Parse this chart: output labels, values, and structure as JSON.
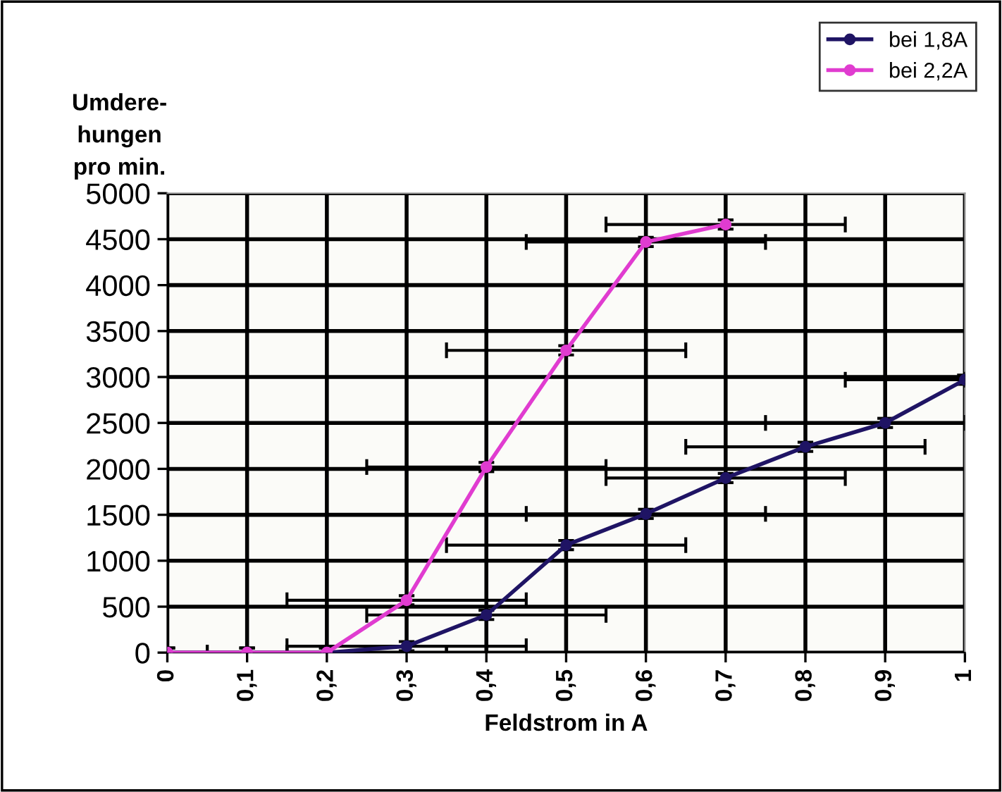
{
  "chart_data": {
    "type": "line",
    "xlabel": "Feldstrom in A",
    "ylabel": "Umdere-\nhungen\npro min.",
    "xlim": [
      0,
      1
    ],
    "ylim": [
      0,
      5000
    ],
    "xticks": [
      {
        "value": 0,
        "label": "0"
      },
      {
        "value": 0.1,
        "label": "0,1"
      },
      {
        "value": 0.2,
        "label": "0,2"
      },
      {
        "value": 0.3,
        "label": "0,3"
      },
      {
        "value": 0.4,
        "label": "0,4"
      },
      {
        "value": 0.5,
        "label": "0,5"
      },
      {
        "value": 0.6,
        "label": "0,6"
      },
      {
        "value": 0.7,
        "label": "0,7"
      },
      {
        "value": 0.8,
        "label": "0,8"
      },
      {
        "value": 0.9,
        "label": "0,9"
      },
      {
        "value": 1,
        "label": "1"
      }
    ],
    "yticks": [
      0,
      500,
      1000,
      1500,
      2000,
      2500,
      3000,
      3500,
      4000,
      4500,
      5000
    ],
    "grid": true,
    "legend": "top right",
    "marker": "circle",
    "line_style": "solid",
    "series": [
      {
        "name": "bei 1,8A",
        "color": "#1f1464",
        "x": [
          0,
          0.1,
          0.2,
          0.3,
          0.4,
          0.5,
          0.6,
          0.7,
          0.8,
          0.9,
          1
        ],
        "values": [
          0,
          0,
          0,
          70,
          410,
          1170,
          1510,
          1900,
          2240,
          2500,
          2970
        ],
        "errors": [
          50,
          50,
          50,
          50,
          50,
          50,
          50,
          50,
          50,
          50,
          50
        ],
        "xerrors": [
          [
            0,
            0.15
          ],
          [
            0,
            0.25
          ],
          [
            0.05,
            0.35
          ],
          [
            0.15,
            0.45
          ],
          [
            0.25,
            0.55
          ],
          [
            0.35,
            0.65
          ],
          [
            0.45,
            0.75
          ],
          [
            0.55,
            0.85
          ],
          [
            0.65,
            0.95
          ],
          [
            0.75,
            1
          ],
          [
            0.85,
            1
          ]
        ]
      },
      {
        "name": "bei 2,2A",
        "color": "#e03cd0",
        "x": [
          0,
          0.1,
          0.2,
          0.3,
          0.4,
          0.5,
          0.6,
          0.7
        ],
        "values": [
          0,
          0,
          0,
          570,
          2020,
          3290,
          4470,
          4660
        ],
        "errors": [
          50,
          50,
          50,
          50,
          50,
          50,
          50,
          50
        ],
        "xerrors": [
          [
            0,
            0.15
          ],
          [
            0,
            0.25
          ],
          [
            0.05,
            0.35
          ],
          [
            0.15,
            0.45
          ],
          [
            0.25,
            0.55
          ],
          [
            0.35,
            0.65
          ],
          [
            0.45,
            0.75
          ],
          [
            0.55,
            0.85
          ]
        ]
      }
    ]
  }
}
